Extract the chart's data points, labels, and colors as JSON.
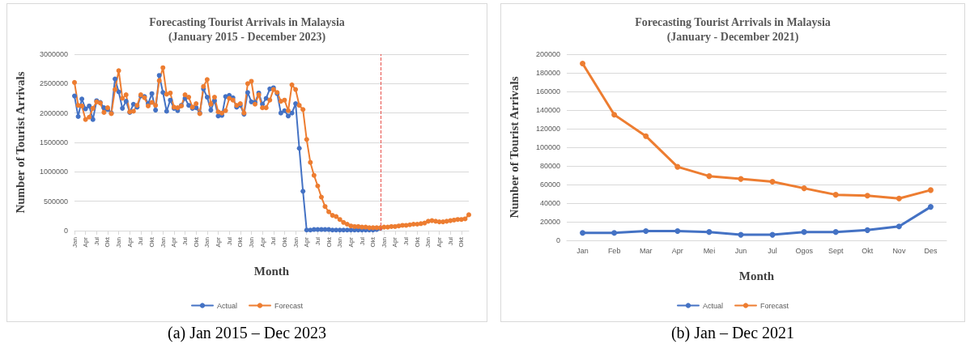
{
  "chart_data": [
    {
      "type": "line",
      "title": "Forecasting Tourist Arrivals in Malaysia",
      "subtitle": "(January 2015 - December 2023)",
      "xlabel": "Month",
      "ylabel": "Number of Tourist Arrivals",
      "annotations": [
        "(a) Jan 2015 – Dec 2023"
      ],
      "x": [
        "2015-01",
        "2015-02",
        "2015-03",
        "2015-04",
        "2015-05",
        "2015-06",
        "2015-07",
        "2015-08",
        "2015-09",
        "2015-10",
        "2015-11",
        "2015-12",
        "2016-01",
        "2016-02",
        "2016-03",
        "2016-04",
        "2016-05",
        "2016-06",
        "2016-07",
        "2016-08",
        "2016-09",
        "2016-10",
        "2016-11",
        "2016-12",
        "2017-01",
        "2017-02",
        "2017-03",
        "2017-04",
        "2017-05",
        "2017-06",
        "2017-07",
        "2017-08",
        "2017-09",
        "2017-10",
        "2017-11",
        "2017-12",
        "2018-01",
        "2018-02",
        "2018-03",
        "2018-04",
        "2018-05",
        "2018-06",
        "2018-07",
        "2018-08",
        "2018-09",
        "2018-10",
        "2018-11",
        "2018-12",
        "2019-01",
        "2019-02",
        "2019-03",
        "2019-04",
        "2019-05",
        "2019-06",
        "2019-07",
        "2019-08",
        "2019-09",
        "2019-10",
        "2019-11",
        "2019-12",
        "2020-01",
        "2020-02",
        "2020-03",
        "2020-04",
        "2020-05",
        "2020-06",
        "2020-07",
        "2020-08",
        "2020-09",
        "2020-10",
        "2020-11",
        "2020-12",
        "2021-01",
        "2021-02",
        "2021-03",
        "2021-04",
        "2021-05",
        "2021-06",
        "2021-07",
        "2021-08",
        "2021-09",
        "2021-10",
        "2021-11",
        "2021-12",
        "2022-01",
        "2022-02",
        "2022-03",
        "2022-04",
        "2022-05",
        "2022-06",
        "2022-07",
        "2022-08",
        "2022-09",
        "2022-10",
        "2022-11",
        "2022-12",
        "2023-01",
        "2023-02",
        "2023-03",
        "2023-04",
        "2023-05",
        "2023-06",
        "2023-07",
        "2023-08",
        "2023-09",
        "2023-10",
        "2023-11",
        "2023-12"
      ],
      "series": [
        {
          "name": "Actual",
          "color": "#4472c4",
          "values": [
            2290000,
            1940000,
            2240000,
            2070000,
            2120000,
            1890000,
            2210000,
            2180000,
            2090000,
            2060000,
            2000000,
            2580000,
            2360000,
            2080000,
            2200000,
            2010000,
            2150000,
            2100000,
            2290000,
            2280000,
            2160000,
            2330000,
            2050000,
            2640000,
            2350000,
            2030000,
            2220000,
            2080000,
            2040000,
            2130000,
            2250000,
            2130000,
            2080000,
            2090000,
            2000000,
            2410000,
            2270000,
            2050000,
            2210000,
            1950000,
            1960000,
            2280000,
            2300000,
            2260000,
            2100000,
            2130000,
            1980000,
            2350000,
            2190000,
            2180000,
            2340000,
            2150000,
            2250000,
            2410000,
            2430000,
            2330000,
            2000000,
            2040000,
            1950000,
            2000000,
            2160000,
            1400000,
            670000,
            10000,
            10000,
            20000,
            20000,
            20000,
            20000,
            20000,
            10000,
            10000,
            10000,
            10000,
            10000,
            10000,
            10000,
            10000,
            10000,
            10000,
            10000,
            10000,
            20000,
            40000,
            null,
            null,
            null,
            null,
            null,
            null,
            null,
            null,
            null,
            null,
            null,
            null,
            null,
            null,
            null,
            null,
            null,
            null,
            null,
            null,
            null,
            null,
            null,
            null
          ]
        },
        {
          "name": "Forecast",
          "color": "#ed7d31",
          "values": [
            2520000,
            2130000,
            2120000,
            1890000,
            1930000,
            2080000,
            2190000,
            2170000,
            2010000,
            2090000,
            1990000,
            2400000,
            2720000,
            2250000,
            2310000,
            2020000,
            2030000,
            2130000,
            2310000,
            2260000,
            2120000,
            2180000,
            2130000,
            2550000,
            2770000,
            2320000,
            2340000,
            2100000,
            2090000,
            2120000,
            2310000,
            2270000,
            2100000,
            2160000,
            1990000,
            2450000,
            2570000,
            2150000,
            2270000,
            2020000,
            2000000,
            2040000,
            2250000,
            2220000,
            2130000,
            2160000,
            2000000,
            2500000,
            2540000,
            2150000,
            2310000,
            2090000,
            2090000,
            2220000,
            2400000,
            2350000,
            2200000,
            2220000,
            2040000,
            2480000,
            2400000,
            2130000,
            2060000,
            1550000,
            1160000,
            940000,
            760000,
            570000,
            410000,
            320000,
            260000,
            240000,
            190000,
            140000,
            110000,
            80000,
            70000,
            70000,
            60000,
            60000,
            50000,
            50000,
            50000,
            50000,
            60000,
            60000,
            70000,
            70000,
            80000,
            90000,
            90000,
            100000,
            110000,
            110000,
            120000,
            130000,
            160000,
            170000,
            160000,
            150000,
            150000,
            160000,
            170000,
            180000,
            190000,
            190000,
            200000,
            270000
          ]
        }
      ],
      "xlim": [
        "2015-01",
        "2023-12"
      ],
      "xticks": [
        {
          "value": "2015-01",
          "label": "Jan"
        },
        {
          "value": "2015-04",
          "label": "Apr"
        },
        {
          "value": "2015-07",
          "label": "Jul"
        },
        {
          "value": "2015-10",
          "label": "Okt"
        },
        {
          "value": "2016-01",
          "label": "Jan"
        },
        {
          "value": "2016-04",
          "label": "Apr"
        },
        {
          "value": "2016-07",
          "label": "Jul"
        },
        {
          "value": "2016-10",
          "label": "Okt"
        },
        {
          "value": "2017-01",
          "label": "Jan"
        },
        {
          "value": "2017-04",
          "label": "Apr"
        },
        {
          "value": "2017-07",
          "label": "Jul"
        },
        {
          "value": "2017-10",
          "label": "Okt"
        },
        {
          "value": "2018-01",
          "label": "Jan"
        },
        {
          "value": "2018-04",
          "label": "Apr"
        },
        {
          "value": "2018-07",
          "label": "Jul"
        },
        {
          "value": "2018-10",
          "label": "Okt"
        },
        {
          "value": "2019-01",
          "label": "Jan"
        },
        {
          "value": "2019-04",
          "label": "Apr"
        },
        {
          "value": "2019-07",
          "label": "Jul"
        },
        {
          "value": "2019-10",
          "label": "Okt"
        },
        {
          "value": "2020-01",
          "label": "Jan"
        },
        {
          "value": "2020-04",
          "label": "Apr"
        },
        {
          "value": "2020-07",
          "label": "Jul"
        },
        {
          "value": "2020-10",
          "label": "Okt"
        },
        {
          "value": "2021-01",
          "label": "Jan"
        },
        {
          "value": "2021-04",
          "label": "Apr"
        },
        {
          "value": "2021-07",
          "label": "Jul"
        },
        {
          "value": "2021-10",
          "label": "Okt"
        },
        {
          "value": "2022-01",
          "label": "Jan"
        },
        {
          "value": "2022-04",
          "label": "Apr"
        },
        {
          "value": "2022-07",
          "label": "Jul"
        },
        {
          "value": "2022-10",
          "label": "Okt"
        },
        {
          "value": "2023-01",
          "label": "Jan"
        },
        {
          "value": "2023-04",
          "label": "Apr"
        },
        {
          "value": "2023-07",
          "label": "Jul"
        },
        {
          "value": "2023-10",
          "label": "Okt"
        }
      ],
      "ylim": [
        0,
        3000000
      ],
      "yticks": [
        0,
        500000,
        1000000,
        1500000,
        2000000,
        2500000,
        3000000
      ],
      "ref_lines": [
        {
          "axis": "x",
          "value": "2021-12",
          "color": "#e8504a",
          "line_style": "dashed"
        }
      ],
      "grid": "y",
      "legend": "bottom",
      "marker": "circle",
      "line_style": "solid"
    },
    {
      "type": "line",
      "title": "Forecasting Tourist Arrivals in Malaysia",
      "subtitle": "(January - December 2021)",
      "xlabel": "Month",
      "ylabel": "Number of Tourist Arrivals",
      "annotations": [
        "(b) Jan – Dec 2021"
      ],
      "categories": [
        "Jan",
        "Feb",
        "Mar",
        "Apr",
        "Mei",
        "Jun",
        "Jul",
        "Ogos",
        "Sept",
        "Okt",
        "Nov",
        "Des"
      ],
      "series": [
        {
          "name": "Actual",
          "color": "#4472c4",
          "values": [
            8000,
            8000,
            10000,
            10000,
            9000,
            6000,
            6000,
            9000,
            9000,
            11000,
            15000,
            36000
          ]
        },
        {
          "name": "Forecast",
          "color": "#ed7d31",
          "values": [
            190000,
            135000,
            112000,
            79000,
            69000,
            66000,
            63000,
            56000,
            49000,
            48000,
            45000,
            54000
          ]
        }
      ],
      "ylim": [
        0,
        200000
      ],
      "yticks": [
        0,
        20000,
        40000,
        60000,
        80000,
        100000,
        120000,
        140000,
        160000,
        180000,
        200000
      ],
      "grid": "y",
      "legend": "bottom",
      "marker": "circle",
      "line_style": "solid"
    }
  ]
}
